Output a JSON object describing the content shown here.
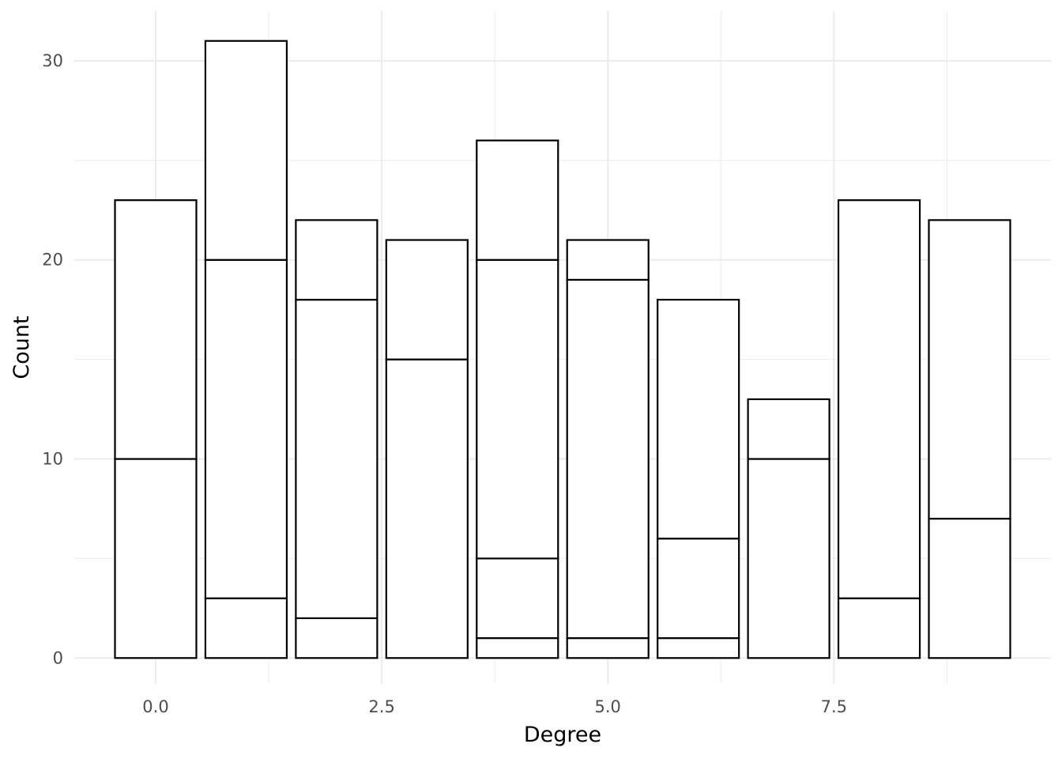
{
  "chart_data": {
    "type": "bar",
    "stacked": true,
    "title": "",
    "xlabel": "Degree",
    "ylabel": "Count",
    "x": [
      0,
      1,
      2,
      3,
      4,
      5,
      6,
      7,
      8,
      9
    ],
    "segment_boundaries": [
      [
        10,
        23
      ],
      [
        3,
        20,
        31
      ],
      [
        2,
        18,
        22
      ],
      [
        15,
        21
      ],
      [
        1,
        5,
        20,
        26
      ],
      [
        1,
        19,
        21
      ],
      [
        1,
        6,
        18
      ],
      [
        10,
        13
      ],
      [
        3,
        23
      ],
      [
        7,
        22
      ]
    ],
    "totals": [
      23,
      31,
      22,
      21,
      26,
      21,
      18,
      13,
      23,
      22
    ],
    "xlim": [
      -0.9,
      9.9
    ],
    "ylim": [
      -1.3,
      32.5
    ],
    "x_ticks": [
      0,
      2.5,
      5,
      7.5
    ],
    "x_tick_labels": [
      "0.0",
      "2.5",
      "5.0",
      "7.5"
    ],
    "y_ticks": [
      0,
      10,
      20,
      30
    ],
    "y_tick_labels": [
      "0",
      "10",
      "20",
      "30"
    ],
    "grid": true,
    "bar_fill": "#ffffff",
    "bar_stroke": "#000000",
    "grid_color": "#ebebeb",
    "legend": "none"
  }
}
